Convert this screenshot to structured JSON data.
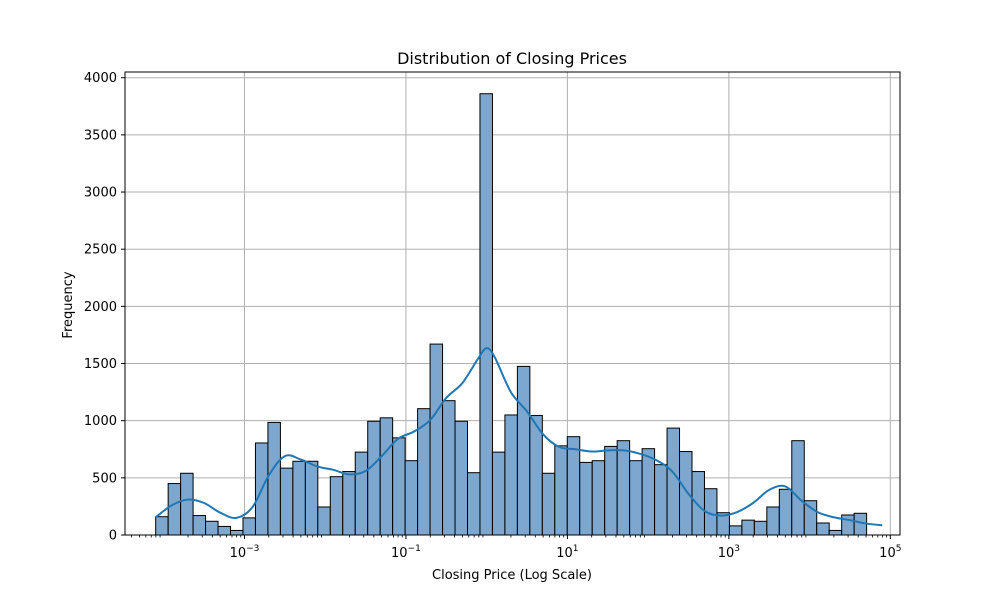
{
  "chart_data": {
    "type": "bar",
    "title": "Distribution of Closing Prices",
    "xlabel": "Closing Price (Log Scale)",
    "ylabel": "Frequency",
    "x_scale": "log",
    "xlim_log10": [
      -4.48,
      5.12
    ],
    "ylim": [
      0,
      4050
    ],
    "grid": true,
    "x_ticks": [
      {
        "value": 0.001,
        "base": "10",
        "exponent": "−3"
      },
      {
        "value": 0.1,
        "base": "10",
        "exponent": "−1"
      },
      {
        "value": 10,
        "base": "10",
        "exponent": "1"
      },
      {
        "value": 1000,
        "base": "10",
        "exponent": "3"
      },
      {
        "value": 100000,
        "base": "10",
        "exponent": "5"
      }
    ],
    "y_ticks": [
      "0",
      "500",
      "1000",
      "1500",
      "2000",
      "2500",
      "3000",
      "3500",
      "4000"
    ],
    "bar_color": "#7da7cf",
    "bar_edge_color": "#000000",
    "kde_color": "#1f77b4",
    "bins_log10_start": -4.1,
    "bins_log10_width": 0.1545,
    "values": [
      160,
      450,
      540,
      170,
      120,
      75,
      40,
      150,
      805,
      985,
      585,
      645,
      645,
      245,
      510,
      555,
      725,
      995,
      1025,
      850,
      650,
      1105,
      1670,
      1175,
      995,
      545,
      3860,
      725,
      1050,
      1475,
      1045,
      540,
      780,
      860,
      635,
      650,
      775,
      825,
      650,
      755,
      615,
      935,
      730,
      555,
      405,
      195,
      80,
      130,
      120,
      245,
      400,
      825,
      300,
      105,
      40,
      175,
      190
    ],
    "kde": {
      "x_log10": [
        -4.1,
        -3.9,
        -3.7,
        -3.5,
        -3.3,
        -3.1,
        -2.9,
        -2.7,
        -2.5,
        -2.3,
        -2.1,
        -1.9,
        -1.7,
        -1.5,
        -1.3,
        -1.1,
        -0.9,
        -0.7,
        -0.5,
        -0.3,
        -0.1,
        0.0,
        0.1,
        0.3,
        0.5,
        0.7,
        0.9,
        1.1,
        1.3,
        1.5,
        1.7,
        1.9,
        2.1,
        2.3,
        2.5,
        2.7,
        2.9,
        3.1,
        3.3,
        3.5,
        3.7,
        3.9,
        4.1,
        4.3,
        4.5,
        4.7,
        4.9
      ],
      "y": [
        155,
        260,
        310,
        280,
        195,
        150,
        245,
        520,
        690,
        660,
        600,
        570,
        530,
        560,
        690,
        840,
        905,
        1005,
        1200,
        1330,
        1550,
        1635,
        1555,
        1250,
        1080,
        880,
        770,
        750,
        730,
        740,
        740,
        710,
        655,
        555,
        360,
        210,
        170,
        200,
        280,
        395,
        425,
        300,
        200,
        155,
        130,
        100,
        85
      ]
    }
  }
}
